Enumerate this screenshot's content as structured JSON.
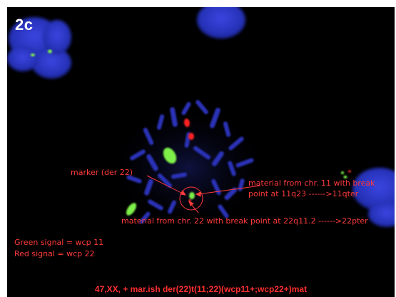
{
  "figure": {
    "panel_label": "2c",
    "annotations": {
      "marker": "marker (der 22)",
      "chr11_line1": "material from chr. 11 with break",
      "chr11_line2": "point at 11q23 ------>11qter",
      "chr22": "material from chr. 22 with break point at 22q11.2 ------>22pter"
    },
    "legend": {
      "green": "Green signal = wcp 11",
      "red": "Red signal = wcp 22"
    },
    "karyotype": "47,XX, + mar.ish der(22)t(11;22)(wcp11+;wcp22+)mat"
  },
  "colors": {
    "background": "#000000",
    "dapi_blue": "#2b34c9",
    "wcp11_green": "#7ef04a",
    "wcp22_red": "#ff2020",
    "annotation_red": "#ff3b3b"
  }
}
